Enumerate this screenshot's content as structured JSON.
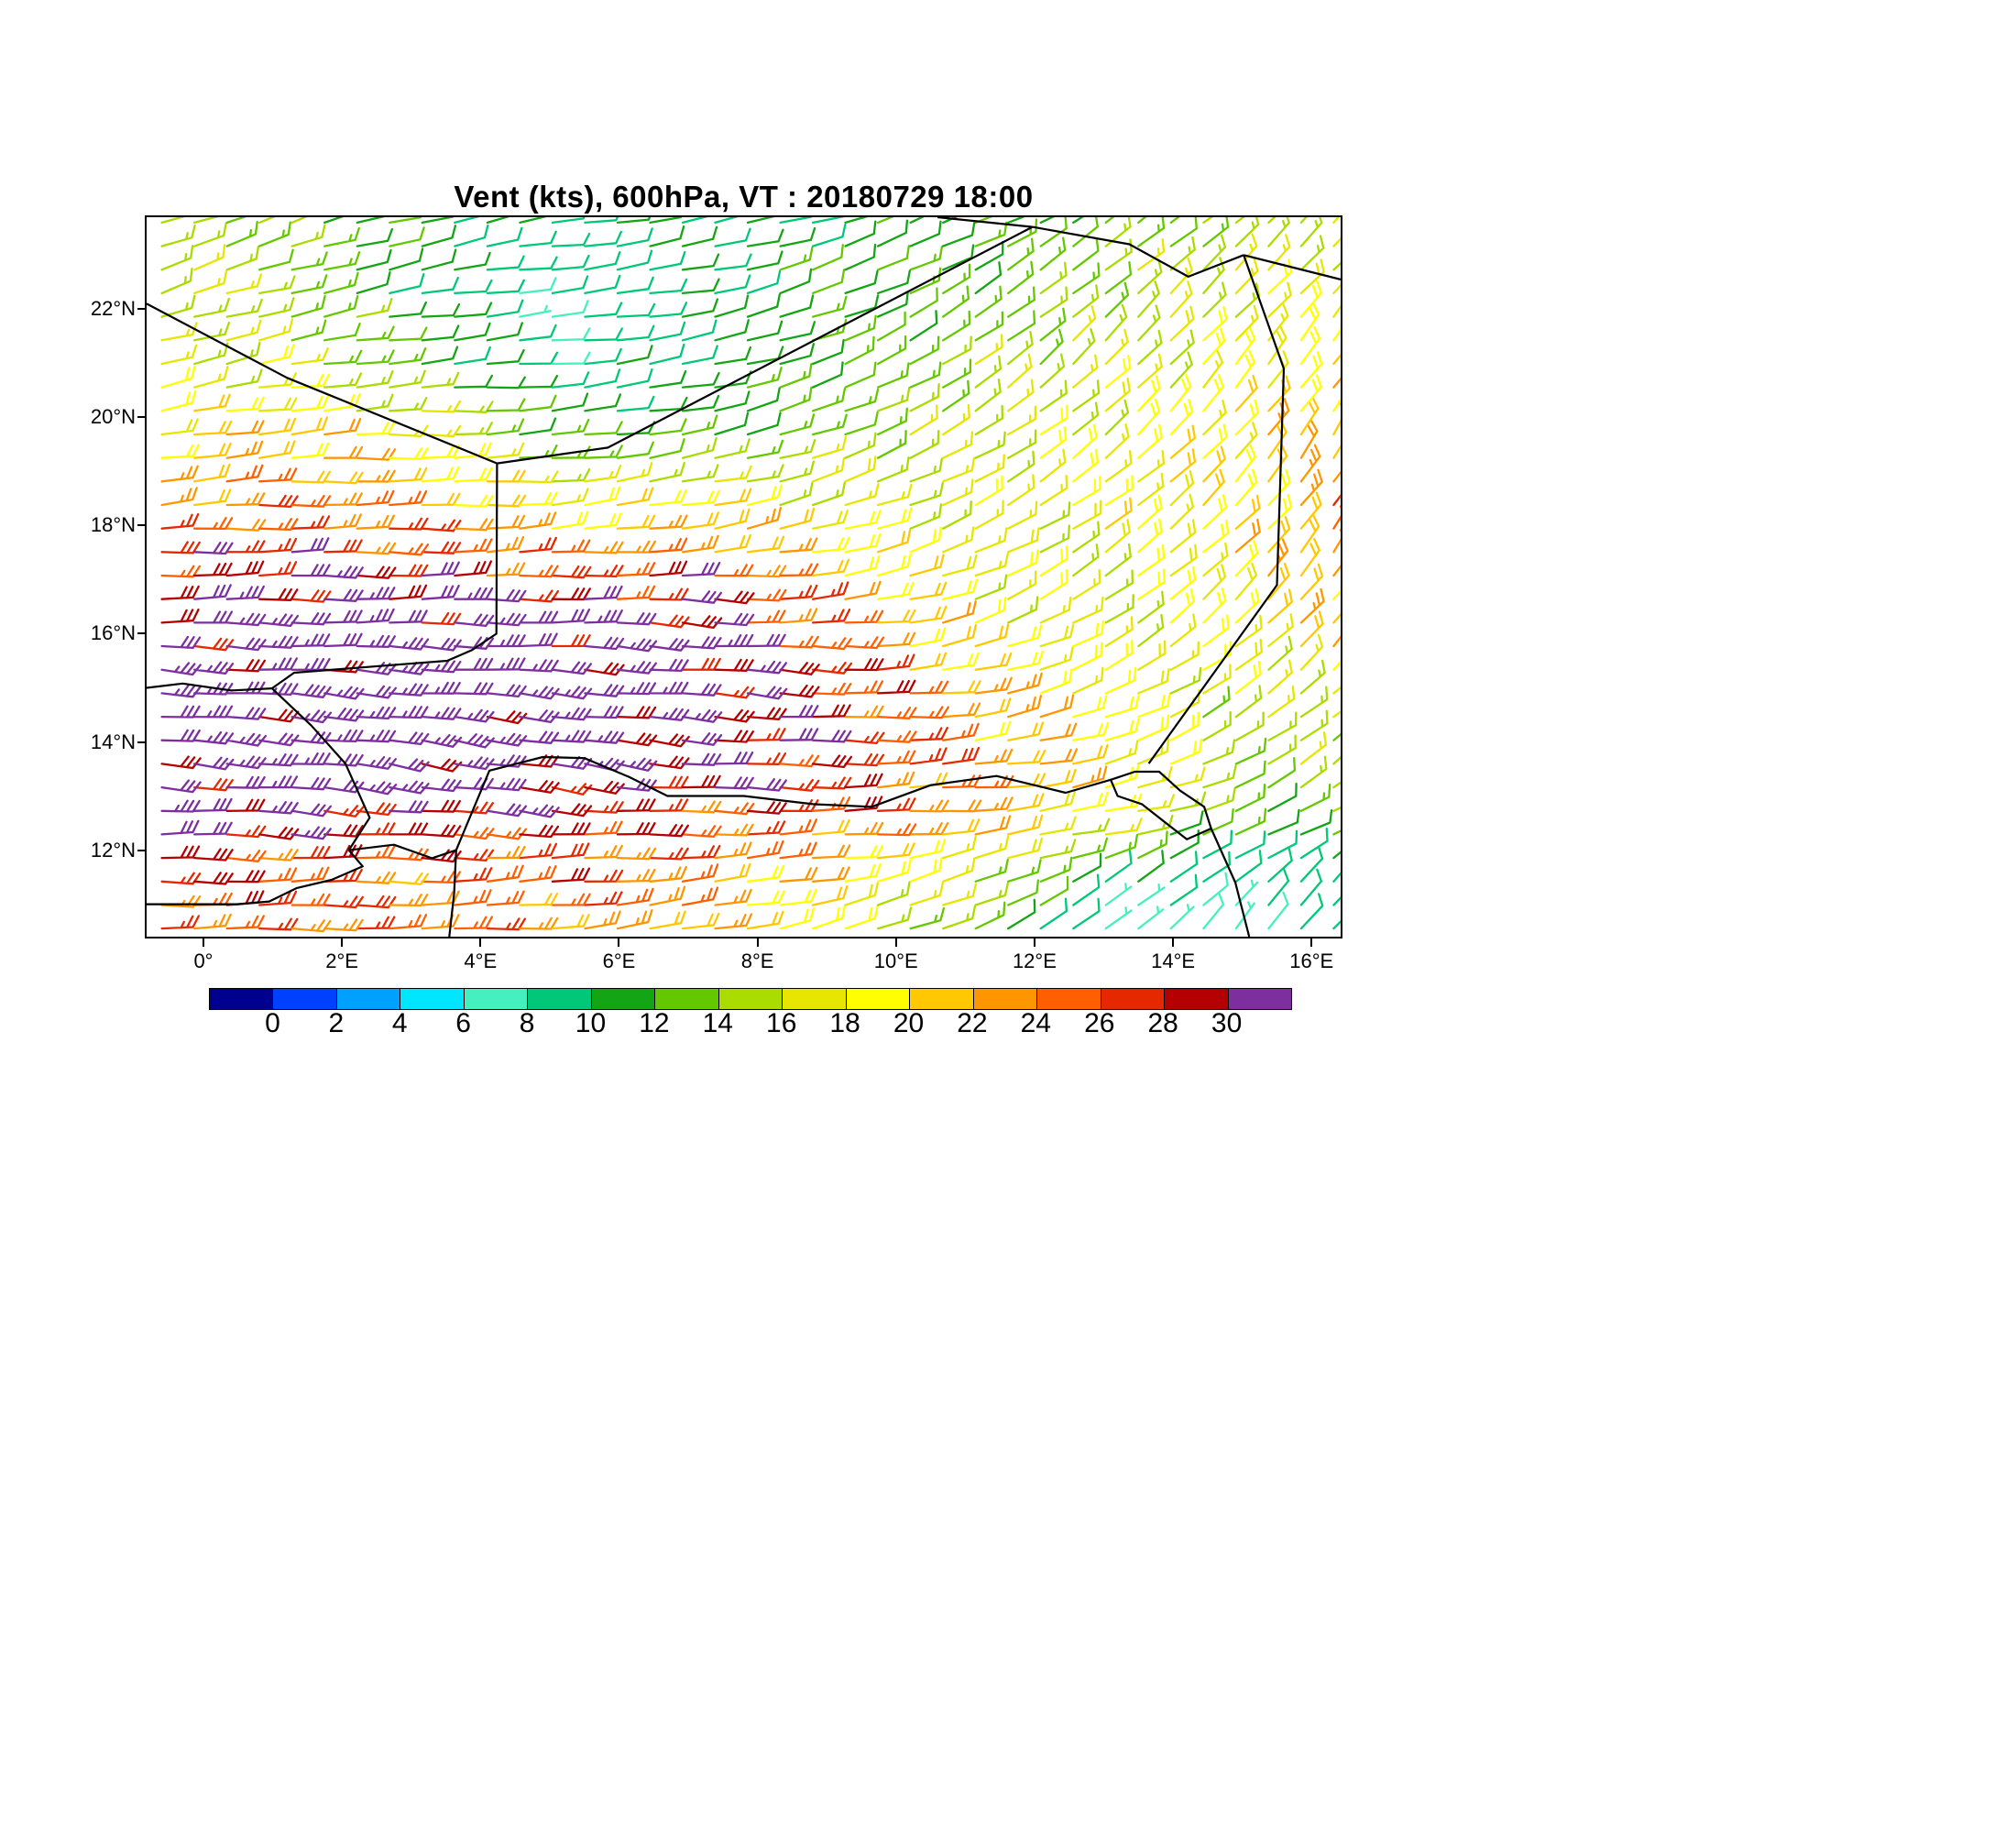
{
  "title": "Vent (kts), 600hPa, VT : 20180729  18:00",
  "axes": {
    "x_ticks": [
      {
        "lon": 0,
        "label": "0°"
      },
      {
        "lon": 2,
        "label": "2°E"
      },
      {
        "lon": 4,
        "label": "4°E"
      },
      {
        "lon": 6,
        "label": "6°E"
      },
      {
        "lon": 8,
        "label": "8°E"
      },
      {
        "lon": 10,
        "label": "10°E"
      },
      {
        "lon": 12,
        "label": "12°E"
      },
      {
        "lon": 14,
        "label": "14°E"
      },
      {
        "lon": 16,
        "label": "16°E"
      }
    ],
    "y_ticks": [
      {
        "lat": 22,
        "label": "22°N"
      },
      {
        "lat": 20,
        "label": "20°N"
      },
      {
        "lat": 18,
        "label": "18°N"
      },
      {
        "lat": 16,
        "label": "16°N"
      },
      {
        "lat": 14,
        "label": "14°N"
      },
      {
        "lat": 12,
        "label": "12°N"
      }
    ]
  },
  "map": {
    "lon_min": -0.82,
    "lon_max": 16.42,
    "lat_min": 10.4,
    "lat_max": 23.7,
    "borders": {
      "mali_algeria": [
        [
          -0.82,
          22.1
        ],
        [
          1.21,
          20.73
        ],
        [
          4.24,
          19.15
        ]
      ],
      "algeria_niger": [
        [
          4.24,
          19.15
        ],
        [
          5.84,
          19.44
        ],
        [
          11.97,
          23.52
        ]
      ],
      "algeria_libya": [
        [
          10.6,
          23.7
        ],
        [
          11.97,
          23.52
        ]
      ],
      "niger_libya": [
        [
          11.97,
          23.52
        ],
        [
          13.37,
          23.2
        ],
        [
          14.22,
          22.6
        ],
        [
          15.02,
          23.0
        ]
      ],
      "libya_chad": [
        [
          15.02,
          23.0
        ],
        [
          16.42,
          22.55
        ]
      ],
      "niger_chad": [
        [
          15.02,
          23.0
        ],
        [
          15.6,
          20.9
        ],
        [
          15.5,
          16.9
        ],
        [
          13.65,
          13.6
        ]
      ],
      "mali_niger": [
        [
          4.24,
          19.15
        ],
        [
          4.23,
          16.0
        ],
        [
          3.88,
          15.7
        ],
        [
          3.52,
          15.5
        ],
        [
          1.31,
          15.28
        ],
        [
          0.99,
          14.99
        ]
      ],
      "mali_burkina": [
        [
          -0.82,
          15.0
        ],
        [
          -0.3,
          15.08
        ],
        [
          0.4,
          14.95
        ],
        [
          0.99,
          14.99
        ]
      ],
      "burkina_niger": [
        [
          0.99,
          14.99
        ],
        [
          1.56,
          14.3
        ],
        [
          2.05,
          13.6
        ],
        [
          2.4,
          12.6
        ],
        [
          2.1,
          12.0
        ]
      ],
      "benin_niger": [
        [
          2.1,
          12.0
        ],
        [
          2.75,
          12.1
        ],
        [
          3.3,
          11.85
        ],
        [
          3.65,
          12.0
        ]
      ],
      "nigeria_benin": [
        [
          3.65,
          12.0
        ],
        [
          3.62,
          11.2
        ],
        [
          3.55,
          10.4
        ]
      ],
      "niger_nigeria": [
        [
          3.65,
          12.0
        ],
        [
          4.13,
          13.47
        ],
        [
          4.9,
          13.72
        ],
        [
          5.5,
          13.7
        ],
        [
          6.15,
          13.35
        ],
        [
          6.7,
          13.0
        ],
        [
          7.8,
          13.0
        ],
        [
          8.8,
          12.85
        ],
        [
          9.65,
          12.8
        ],
        [
          10.5,
          13.2
        ],
        [
          11.45,
          13.37
        ],
        [
          12.45,
          13.06
        ],
        [
          13.1,
          13.3
        ]
      ],
      "lake_chad": [
        [
          13.1,
          13.3
        ],
        [
          13.45,
          13.45
        ],
        [
          13.8,
          13.45
        ],
        [
          14.1,
          13.1
        ],
        [
          14.45,
          12.8
        ],
        [
          14.55,
          12.4
        ],
        [
          14.2,
          12.2
        ],
        [
          13.9,
          12.5
        ],
        [
          13.55,
          12.85
        ],
        [
          13.2,
          13.0
        ],
        [
          13.1,
          13.3
        ]
      ],
      "chari_river": [
        [
          14.55,
          12.4
        ],
        [
          14.9,
          11.4
        ],
        [
          15.1,
          10.4
        ]
      ],
      "burkina_south": [
        [
          -0.82,
          11.0
        ],
        [
          0.5,
          11.0
        ],
        [
          0.95,
          11.05
        ],
        [
          1.35,
          11.3
        ],
        [
          1.85,
          11.45
        ],
        [
          2.3,
          11.7
        ],
        [
          2.1,
          12.0
        ]
      ]
    }
  },
  "colorbar": {
    "colors": [
      "#00008f",
      "#0040ff",
      "#00a0ff",
      "#00e6ff",
      "#46f0be",
      "#00c878",
      "#14a514",
      "#64c800",
      "#aadc00",
      "#e6e600",
      "#ffff00",
      "#ffc800",
      "#ff9600",
      "#ff5f00",
      "#e62800",
      "#b40000",
      "#7d2fa0"
    ],
    "tick_labels": [
      "0",
      "2",
      "4",
      "6",
      "8",
      "10",
      "12",
      "14",
      "16",
      "18",
      "20",
      "22",
      "24",
      "26",
      "28",
      "30"
    ]
  },
  "chart_data": {
    "type": "wind_barbs",
    "variable": "Vent",
    "units": "kts",
    "level": "600hPa",
    "valid_time": "20180729 18:00",
    "barb_convention": {
      "full_barb_kts": 10,
      "half_barb_kts": 5
    },
    "speed_color_levels_kts": [
      0,
      2,
      4,
      6,
      8,
      10,
      12,
      14,
      16,
      18,
      20,
      22,
      24,
      26,
      28,
      30
    ],
    "grid": {
      "lons": [
        -1,
        1,
        3,
        5,
        7,
        9,
        11,
        13,
        15,
        17
      ],
      "lats": [
        10.5,
        11.5,
        12.5,
        13.5,
        15,
        16.5,
        18,
        19.5,
        21,
        22.5,
        24
      ],
      "speed_kts": [
        [
          26,
          26,
          24,
          24,
          22,
          18,
          14,
          6,
          8,
          10
        ],
        [
          28,
          26,
          24,
          26,
          24,
          20,
          16,
          10,
          8,
          10
        ],
        [
          30,
          30,
          28,
          28,
          26,
          26,
          22,
          18,
          12,
          14
        ],
        [
          32,
          34,
          34,
          32,
          30,
          28,
          24,
          20,
          14,
          16
        ],
        [
          32,
          34,
          34,
          34,
          32,
          28,
          22,
          18,
          16,
          18
        ],
        [
          30,
          32,
          32,
          30,
          30,
          24,
          18,
          16,
          20,
          24
        ],
        [
          24,
          26,
          24,
          20,
          22,
          18,
          16,
          18,
          20,
          26
        ],
        [
          20,
          22,
          18,
          12,
          12,
          14,
          16,
          18,
          20,
          24
        ],
        [
          16,
          16,
          12,
          8,
          10,
          12,
          14,
          16,
          18,
          20
        ],
        [
          16,
          14,
          10,
          8,
          10,
          12,
          12,
          14,
          16,
          18
        ],
        [
          14,
          14,
          12,
          10,
          10,
          10,
          12,
          12,
          14,
          16
        ]
      ],
      "dir_from_deg": [
        [
          90,
          90,
          90,
          85,
          80,
          75,
          65,
          50,
          40,
          40
        ],
        [
          90,
          90,
          90,
          85,
          85,
          80,
          70,
          60,
          50,
          45
        ],
        [
          90,
          95,
          95,
          95,
          90,
          90,
          85,
          80,
          70,
          60
        ],
        [
          95,
          95,
          100,
          100,
          95,
          90,
          85,
          75,
          60,
          50
        ],
        [
          95,
          95,
          95,
          95,
          95,
          95,
          80,
          65,
          55,
          45
        ],
        [
          90,
          90,
          90,
          90,
          95,
          85,
          70,
          55,
          45,
          35
        ],
        [
          85,
          90,
          90,
          85,
          80,
          75,
          65,
          55,
          45,
          30
        ],
        [
          80,
          85,
          90,
          85,
          80,
          70,
          60,
          50,
          40,
          30
        ],
        [
          75,
          80,
          85,
          85,
          80,
          70,
          55,
          45,
          40,
          35
        ],
        [
          70,
          75,
          80,
          85,
          80,
          70,
          60,
          50,
          45,
          40
        ],
        [
          70,
          70,
          75,
          80,
          80,
          75,
          70,
          60,
          50,
          45
        ]
      ]
    }
  }
}
